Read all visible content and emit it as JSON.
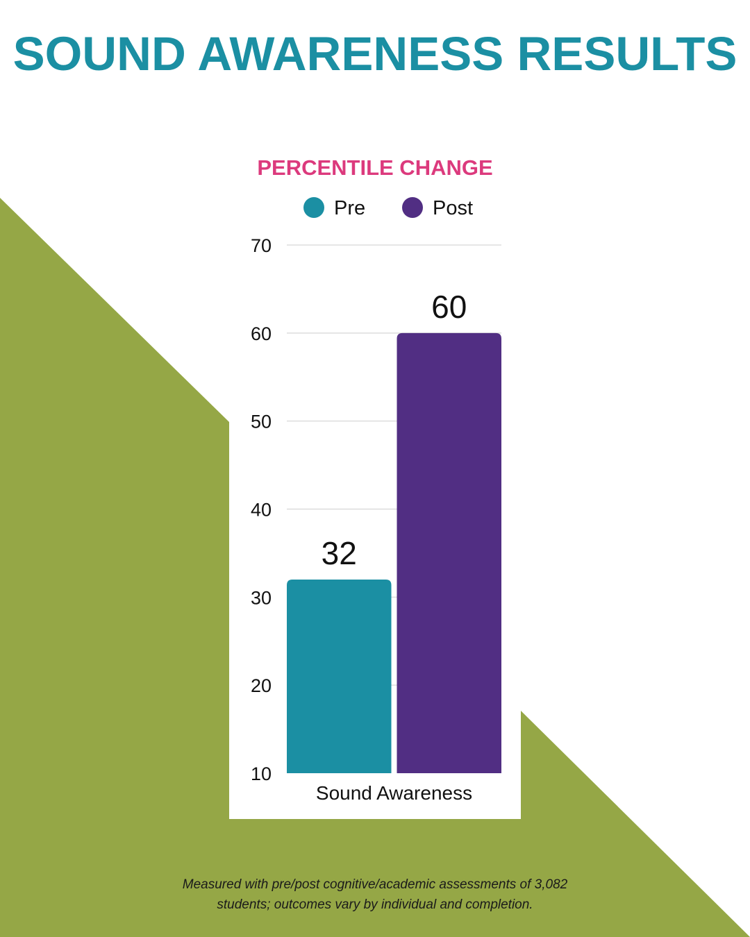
{
  "page": {
    "title": "SOUND AWARENESS RESULTS",
    "footnote_line1": "Measured with pre/post cognitive/academic assessments of 3,082",
    "footnote_line2": "students; outcomes vary by individual and completion."
  },
  "colors": {
    "title": "#1b8fa3",
    "chart_title": "#dc3a7d",
    "pre": "#1b8fa3",
    "post": "#512e83",
    "background_shape": "#95a746",
    "panel": "#ffffff",
    "grid": "#dddddd",
    "text": "#111111"
  },
  "chart_data": {
    "type": "bar",
    "title": "PERCENTILE CHANGE",
    "categories": [
      "Sound Awareness"
    ],
    "series": [
      {
        "name": "Pre",
        "values": [
          32
        ]
      },
      {
        "name": "Post",
        "values": [
          60
        ]
      }
    ],
    "ylim": [
      10,
      70
    ],
    "yticks": [
      10,
      20,
      30,
      40,
      50,
      60,
      70
    ],
    "grid": true,
    "legend": "top",
    "data_labels": true
  }
}
